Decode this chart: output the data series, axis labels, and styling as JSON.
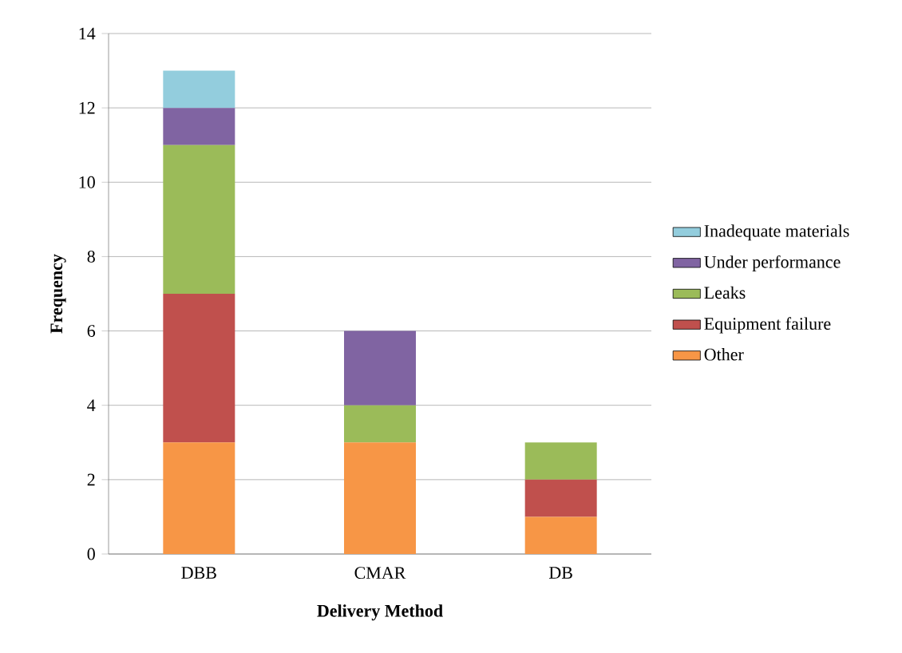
{
  "chart_data": {
    "type": "bar",
    "stacked": true,
    "xlabel": "Delivery Method",
    "ylabel": "Frequency",
    "categories": [
      "DBB",
      "CMAR",
      "DB"
    ],
    "series": [
      {
        "name": "Other",
        "color": "#f79646",
        "values": [
          3,
          3,
          1
        ]
      },
      {
        "name": "Equipment failure",
        "color": "#c0504d",
        "values": [
          4,
          0,
          1
        ]
      },
      {
        "name": "Leaks",
        "color": "#9bbb59",
        "values": [
          4,
          1,
          1
        ]
      },
      {
        "name": "Under performance",
        "color": "#8064a2",
        "values": [
          1,
          2,
          0
        ]
      },
      {
        "name": "Inadequate materials",
        "color": "#93cddd",
        "values": [
          1,
          0,
          0
        ]
      }
    ],
    "ylim": [
      0,
      14
    ],
    "yticks": [
      0,
      2,
      4,
      6,
      8,
      10,
      12,
      14
    ],
    "grid": "y",
    "legend": "right"
  }
}
